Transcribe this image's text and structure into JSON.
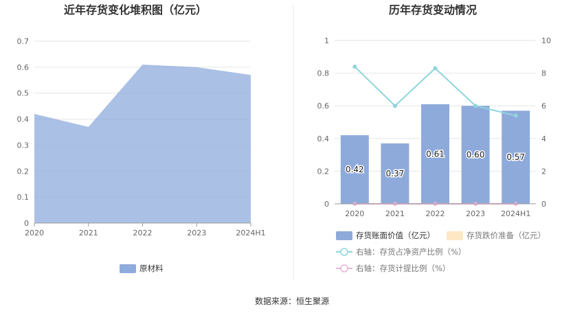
{
  "charts": {
    "left": {
      "title": "近年存货变化堆积图（亿元）",
      "type": "area",
      "categories": [
        "2020",
        "2021",
        "2022",
        "2023",
        "2024H1"
      ],
      "y_ticks": [
        "0",
        "0.1",
        "0.2",
        "0.3",
        "0.4",
        "0.5",
        "0.6",
        "0.7"
      ],
      "ylim": [
        0,
        0.7
      ],
      "series": [
        {
          "name": "原材料",
          "values": [
            0.42,
            0.37,
            0.61,
            0.6,
            0.57
          ],
          "color": "#8fabdc"
        }
      ],
      "grid": true,
      "legend_position": "bottom"
    },
    "right": {
      "title": "历年存货变动情况",
      "type": "bar",
      "categories": [
        "2020",
        "2021",
        "2022",
        "2023",
        "2024H1"
      ],
      "y_left_ticks": [
        "0",
        "0.2",
        "0.4",
        "0.6",
        "0.8",
        "1"
      ],
      "y_right_ticks": [
        "0",
        "2",
        "4",
        "6",
        "8",
        "10"
      ],
      "ylim_left": [
        0,
        1
      ],
      "ylim_right": [
        0,
        10
      ],
      "bars": {
        "name": "存货账面价值（亿元）",
        "values": [
          0.42,
          0.37,
          0.61,
          0.6,
          0.57
        ],
        "labels": [
          "0.42",
          "0.37",
          "0.61",
          "0.60",
          "0.57"
        ],
        "color": "#8eaadb"
      },
      "bars_empty": {
        "name": "存货跌价准备（亿元）",
        "color": "#fde7c4"
      },
      "line1": {
        "name": "右轴：存货占净资产比例（%）",
        "values": [
          8.4,
          6.0,
          8.3,
          6.0,
          5.4
        ],
        "color": "#8fd5dc"
      },
      "line2": {
        "name": "右轴：存货计提比例（%）",
        "values": [
          0,
          0,
          0,
          0,
          0
        ],
        "color": "#e8b4d8"
      },
      "grid": true,
      "legend_position": "bottom"
    }
  },
  "source": "数据来源：恒生聚源"
}
